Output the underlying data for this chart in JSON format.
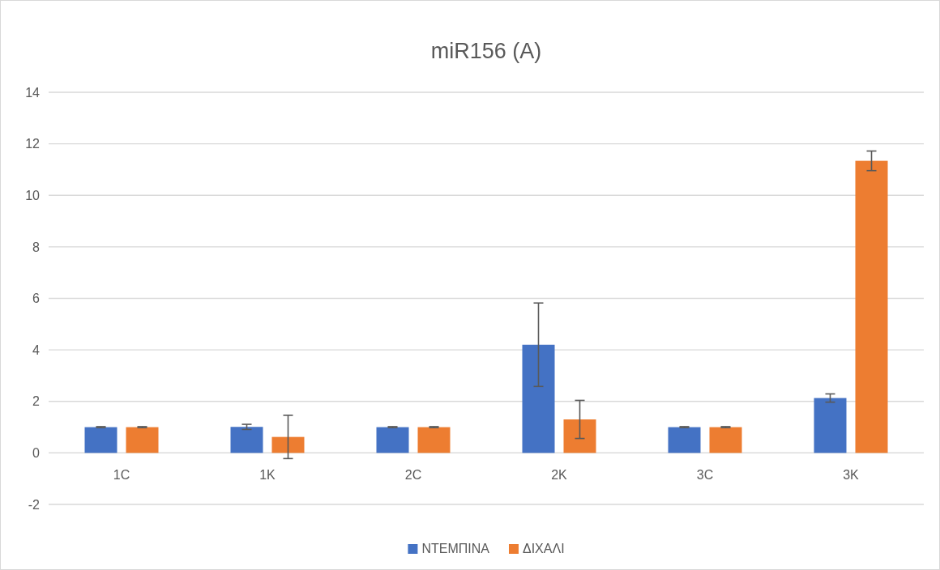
{
  "chart_data": {
    "type": "bar",
    "title": "miR156 (A)",
    "categories": [
      "1C",
      "1K",
      "2C",
      "2K",
      "3C",
      "3K"
    ],
    "series": [
      {
        "name": "ΝΤΕΜΠΙΝΑ",
        "color": "#4472c4",
        "values": [
          1,
          1.01,
          1,
          4.2,
          1,
          2.13
        ],
        "errors": [
          0.02,
          0.1,
          0.02,
          1.62,
          0.02,
          0.16
        ]
      },
      {
        "name": "ΔΙΧΑΛΙ",
        "color": "#ed7d31",
        "values": [
          1,
          0.62,
          1,
          1.3,
          1,
          11.34
        ],
        "errors": [
          0.02,
          0.84,
          0.02,
          0.74,
          0.02,
          0.38
        ]
      }
    ],
    "ylim": [
      -2,
      14
    ],
    "yticks": [
      -2,
      0,
      2,
      4,
      6,
      8,
      10,
      12,
      14
    ],
    "grid": "y",
    "legend": "bottom"
  }
}
